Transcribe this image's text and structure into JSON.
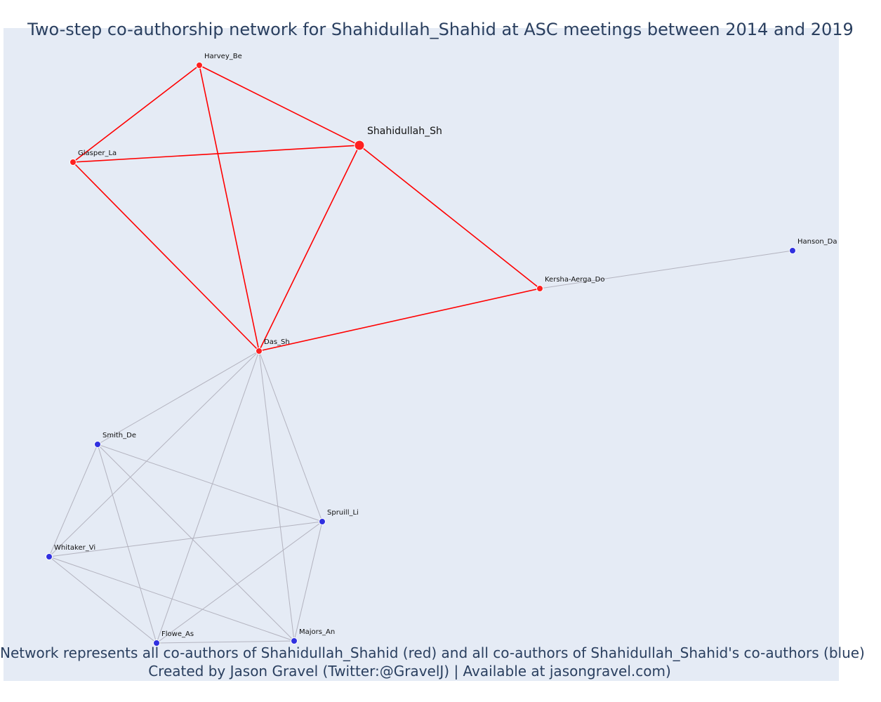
{
  "title": "Two-step co-authorship network for Shahidullah_Shahid at ASC meetings between 2014 and 2019",
  "caption_line_1": "Network represents all co-authors of Shahidullah_Shahid (red) and all co-authors of Shahidullah_Shahid's co-authors (blue)",
  "caption_line_2": "Created by Jason Gravel (Twitter:@GravelJ) | Available at jasongravel.com)",
  "colors": {
    "first_degree": "#ff2020",
    "second_degree": "#3030e0",
    "red_edge": "#ff0000",
    "gray_edge": "#b3b3bf",
    "background": "#e5ebf5"
  },
  "nodes": [
    {
      "id": "Shahidullah_Sh",
      "label": "Shahidullah_Sh",
      "group": "red",
      "focal": true
    },
    {
      "id": "Harvey_Be",
      "label": "Harvey_Be",
      "group": "red"
    },
    {
      "id": "Glasper_La",
      "label": "Glasper_La",
      "group": "red"
    },
    {
      "id": "Das_Sh",
      "label": "Das_Sh",
      "group": "red"
    },
    {
      "id": "Kersha-Aerga_Do",
      "label": "Kersha-Aerga_Do",
      "group": "red"
    },
    {
      "id": "Hanson_Da",
      "label": "Hanson_Da",
      "group": "blue"
    },
    {
      "id": "Smith_De",
      "label": "Smith_De",
      "group": "blue"
    },
    {
      "id": "Spruill_Li",
      "label": "Spruill_Li",
      "group": "blue"
    },
    {
      "id": "Whitaker_Vi",
      "label": "Whitaker_Vi",
      "group": "blue"
    },
    {
      "id": "Flowe_As",
      "label": "Flowe_As",
      "group": "blue"
    },
    {
      "id": "Majors_An",
      "label": "Majors_An",
      "group": "blue"
    }
  ],
  "edges": [
    {
      "source": "Harvey_Be",
      "target": "Glasper_La",
      "color": "red"
    },
    {
      "source": "Harvey_Be",
      "target": "Shahidullah_Sh",
      "color": "red"
    },
    {
      "source": "Harvey_Be",
      "target": "Das_Sh",
      "color": "red"
    },
    {
      "source": "Glasper_La",
      "target": "Shahidullah_Sh",
      "color": "red"
    },
    {
      "source": "Glasper_La",
      "target": "Das_Sh",
      "color": "red"
    },
    {
      "source": "Shahidullah_Sh",
      "target": "Das_Sh",
      "color": "red"
    },
    {
      "source": "Shahidullah_Sh",
      "target": "Kersha-Aerga_Do",
      "color": "red"
    },
    {
      "source": "Das_Sh",
      "target": "Kersha-Aerga_Do",
      "color": "red"
    },
    {
      "source": "Kersha-Aerga_Do",
      "target": "Hanson_Da",
      "color": "gray"
    },
    {
      "source": "Das_Sh",
      "target": "Smith_De",
      "color": "gray"
    },
    {
      "source": "Das_Sh",
      "target": "Whitaker_Vi",
      "color": "gray"
    },
    {
      "source": "Das_Sh",
      "target": "Flowe_As",
      "color": "gray"
    },
    {
      "source": "Das_Sh",
      "target": "Majors_An",
      "color": "gray"
    },
    {
      "source": "Das_Sh",
      "target": "Spruill_Li",
      "color": "gray"
    },
    {
      "source": "Smith_De",
      "target": "Spruill_Li",
      "color": "gray"
    },
    {
      "source": "Smith_De",
      "target": "Whitaker_Vi",
      "color": "gray"
    },
    {
      "source": "Smith_De",
      "target": "Flowe_As",
      "color": "gray"
    },
    {
      "source": "Smith_De",
      "target": "Majors_An",
      "color": "gray"
    },
    {
      "source": "Spruill_Li",
      "target": "Whitaker_Vi",
      "color": "gray"
    },
    {
      "source": "Spruill_Li",
      "target": "Flowe_As",
      "color": "gray"
    },
    {
      "source": "Spruill_Li",
      "target": "Majors_An",
      "color": "gray"
    },
    {
      "source": "Whitaker_Vi",
      "target": "Flowe_As",
      "color": "gray"
    },
    {
      "source": "Whitaker_Vi",
      "target": "Majors_An",
      "color": "gray"
    },
    {
      "source": "Flowe_As",
      "target": "Majors_An",
      "color": "gray"
    }
  ]
}
